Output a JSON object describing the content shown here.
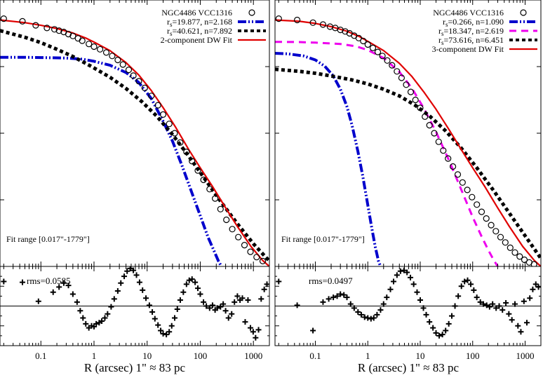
{
  "xaxis": {
    "label": "R (arcsec)  1\" ≈  83 pc",
    "log": true,
    "range": [
      0.017,
      2000
    ],
    "ticks": [
      0.1,
      1,
      10,
      100,
      1000
    ],
    "tick_labels": [
      "0.1",
      "1",
      "10",
      "100",
      "1000"
    ]
  },
  "chart_data": [
    {
      "type": "line",
      "panel": "left-profile",
      "xlog": true,
      "xlim": [
        0.017,
        2000
      ],
      "ylim": [
        0,
        1
      ],
      "fit_range": "Fit range [0.017\"-1779\"]",
      "series": [
        {
          "name": "NGC4486 VCC1316",
          "style": "points",
          "color": "#000000",
          "symbol": "open-circle",
          "x": [
            0.02,
            0.045,
            0.08,
            0.13,
            0.18,
            0.22,
            0.27,
            0.33,
            0.4,
            0.5,
            0.6,
            0.8,
            1,
            1.3,
            1.7,
            2.2,
            2.8,
            3.5,
            4.5,
            5.5,
            7,
            9,
            12,
            16,
            20,
            26,
            33,
            42,
            55,
            70,
            90,
            115,
            150,
            190,
            240,
            310,
            400,
            520,
            680,
            880,
            1150,
            1500
          ],
          "y": [
            0.93,
            0.92,
            0.905,
            0.895,
            0.89,
            0.885,
            0.88,
            0.872,
            0.865,
            0.856,
            0.847,
            0.835,
            0.825,
            0.815,
            0.803,
            0.79,
            0.775,
            0.758,
            0.738,
            0.716,
            0.695,
            0.67,
            0.64,
            0.605,
            0.57,
            0.535,
            0.5,
            0.465,
            0.43,
            0.395,
            0.36,
            0.325,
            0.29,
            0.255,
            0.215,
            0.175,
            0.14,
            0.11,
            0.08,
            0.055,
            0.035,
            0.02
          ]
        },
        {
          "name": "r_s=19.877, n=2.168",
          "style": "dash-dot-dot",
          "color": "#0000cc",
          "x": [
            0.017,
            0.05,
            0.1,
            0.3,
            0.6,
            1,
            2,
            4,
            7,
            12,
            20,
            30,
            45,
            70,
            100,
            140,
            180,
            220,
            250
          ],
          "y": [
            0.785,
            0.785,
            0.784,
            0.782,
            0.778,
            0.77,
            0.755,
            0.728,
            0.69,
            0.63,
            0.545,
            0.47,
            0.38,
            0.275,
            0.19,
            0.11,
            0.06,
            0.02,
            0.0
          ]
        },
        {
          "name": "r_s=40.621, n=7.892",
          "style": "dotted-thick",
          "color": "#000000",
          "x": [
            0.017,
            0.05,
            0.1,
            0.2,
            0.4,
            0.7,
            1,
            2,
            4,
            8,
            15,
            30,
            60,
            120,
            250,
            500,
            1000,
            2000
          ],
          "y": [
            0.885,
            0.86,
            0.84,
            0.815,
            0.788,
            0.762,
            0.745,
            0.71,
            0.668,
            0.618,
            0.565,
            0.495,
            0.415,
            0.33,
            0.24,
            0.16,
            0.085,
            0.02
          ]
        },
        {
          "name": "2-component DW Fit",
          "style": "solid",
          "color": "#e00000",
          "x": [
            0.017,
            0.05,
            0.1,
            0.2,
            0.4,
            0.7,
            1,
            2,
            4,
            7,
            12,
            20,
            35,
            60,
            100,
            170,
            300,
            500,
            900,
            1500,
            2000
          ],
          "y": [
            0.925,
            0.915,
            0.905,
            0.893,
            0.876,
            0.857,
            0.842,
            0.81,
            0.765,
            0.718,
            0.66,
            0.596,
            0.52,
            0.44,
            0.37,
            0.3,
            0.22,
            0.15,
            0.075,
            0.022,
            0.0
          ]
        }
      ]
    },
    {
      "type": "scatter",
      "panel": "left-residuals",
      "xlog": true,
      "xlim": [
        0.017,
        2000
      ],
      "ylim": [
        -1,
        1
      ],
      "rms": "rms=0.0585",
      "series": [
        {
          "name": "",
          "symbol": "plus",
          "x": [
            0.02,
            0.045,
            0.09,
            0.17,
            0.22,
            0.27,
            0.33,
            0.4,
            0.48,
            0.55,
            0.62,
            0.7,
            0.8,
            0.9,
            1,
            1.1,
            1.25,
            1.4,
            1.6,
            1.8,
            2.1,
            2.4,
            2.8,
            3.2,
            3.7,
            4.2,
            4.8,
            5.5,
            6.3,
            7.2,
            8.2,
            9.5,
            11,
            12.5,
            14,
            16,
            18,
            20,
            23,
            26,
            29,
            33,
            37,
            42,
            48,
            55,
            62,
            70,
            80,
            90,
            100,
            115,
            130,
            150,
            170,
            190,
            210,
            240,
            270,
            300,
            340,
            390,
            440,
            500,
            560,
            620,
            700,
            790,
            880,
            990,
            1100,
            1250,
            1400,
            1600,
            1800
          ],
          "y": [
            0.62,
            0.6,
            0.12,
            0.35,
            0.48,
            0.58,
            0.52,
            0.3,
            0.1,
            -0.12,
            -0.3,
            -0.45,
            -0.55,
            -0.5,
            -0.52,
            -0.45,
            -0.42,
            -0.38,
            -0.3,
            -0.2,
            -0.02,
            0.18,
            0.38,
            0.58,
            0.75,
            0.88,
            0.95,
            0.9,
            0.78,
            0.6,
            0.4,
            0.2,
            0.02,
            -0.15,
            -0.32,
            -0.48,
            -0.62,
            -0.7,
            -0.72,
            -0.65,
            -0.5,
            -0.3,
            -0.08,
            0.15,
            0.35,
            0.55,
            0.65,
            0.68,
            0.6,
            0.45,
            0.3,
            0.1,
            0.0,
            -0.05,
            0.02,
            -0.1,
            -0.05,
            -0.02,
            0.05,
            -0.12,
            -0.3,
            -0.2,
            0.1,
            0.25,
            0.15,
            0.2,
            -0.4,
            0.15,
            -0.55,
            -0.65,
            -0.8,
            -0.6,
            0.18,
            0.42,
            0.55
          ]
        }
      ]
    },
    {
      "type": "line",
      "panel": "right-profile",
      "xlog": true,
      "xlim": [
        0.017,
        2000
      ],
      "ylim": [
        0,
        1
      ],
      "fit_range": "Fit range [0.017\"-1779\"]",
      "series": [
        {
          "name": "NGC4486 VCC1316",
          "style": "points",
          "color": "#000000",
          "symbol": "open-circle",
          "x": [
            0.02,
            0.045,
            0.09,
            0.14,
            0.19,
            0.24,
            0.3,
            0.37,
            0.45,
            0.55,
            0.67,
            0.82,
            1,
            1.25,
            1.55,
            1.9,
            2.35,
            2.9,
            3.6,
            4.4,
            5.4,
            6.6,
            8.1,
            10,
            12.3,
            15,
            18.5,
            22.5,
            27.5,
            34,
            42,
            52,
            64,
            79,
            97,
            120,
            148,
            182,
            225,
            277,
            340,
            420,
            520,
            640,
            790,
            970,
            1200,
            1480
          ],
          "y": [
            0.93,
            0.925,
            0.915,
            0.908,
            0.9,
            0.895,
            0.888,
            0.882,
            0.875,
            0.866,
            0.857,
            0.846,
            0.833,
            0.82,
            0.805,
            0.79,
            0.773,
            0.755,
            0.732,
            0.708,
            0.682,
            0.655,
            0.625,
            0.595,
            0.562,
            0.53,
            0.5,
            0.468,
            0.435,
            0.405,
            0.375,
            0.345,
            0.315,
            0.287,
            0.26,
            0.232,
            0.205,
            0.18,
            0.155,
            0.132,
            0.11,
            0.09,
            0.07,
            0.052,
            0.037,
            0.025,
            0.015,
            0.008
          ]
        },
        {
          "name": "r_s=0.266, n=1.090",
          "style": "dash-dot-dot",
          "color": "#0000cc",
          "x": [
            0.017,
            0.03,
            0.06,
            0.1,
            0.15,
            0.22,
            0.3,
            0.4,
            0.5,
            0.65,
            0.8,
            1,
            1.2,
            1.4,
            1.6,
            1.75
          ],
          "y": [
            0.8,
            0.798,
            0.79,
            0.775,
            0.752,
            0.715,
            0.665,
            0.6,
            0.53,
            0.43,
            0.34,
            0.23,
            0.14,
            0.07,
            0.02,
            0.0
          ]
        },
        {
          "name": "r_s=18.347, n=2.619",
          "style": "dashed",
          "color": "#ee00ee",
          "x": [
            0.017,
            0.05,
            0.1,
            0.3,
            0.6,
            1,
            2,
            4,
            7,
            12,
            20,
            35,
            60,
            100,
            150,
            200,
            250,
            300
          ],
          "y": [
            0.843,
            0.842,
            0.84,
            0.835,
            0.826,
            0.812,
            0.782,
            0.73,
            0.668,
            0.59,
            0.505,
            0.4,
            0.29,
            0.185,
            0.11,
            0.06,
            0.025,
            0.0
          ]
        },
        {
          "name": "r_s=73.616, n=6.451",
          "style": "dotted-thick",
          "color": "#000000",
          "x": [
            0.017,
            0.05,
            0.1,
            0.2,
            0.5,
            1,
            2,
            4,
            8,
            15,
            30,
            60,
            120,
            250,
            500,
            1000,
            2000
          ],
          "y": [
            0.74,
            0.732,
            0.725,
            0.715,
            0.7,
            0.685,
            0.665,
            0.64,
            0.605,
            0.565,
            0.51,
            0.445,
            0.37,
            0.285,
            0.2,
            0.115,
            0.03
          ]
        },
        {
          "name": "3-component DW Fit",
          "style": "solid",
          "color": "#e00000",
          "x": [
            0.017,
            0.05,
            0.1,
            0.2,
            0.4,
            0.7,
            1,
            2,
            4,
            7,
            12,
            20,
            35,
            60,
            100,
            170,
            300,
            500,
            900,
            1500,
            2000
          ],
          "y": [
            0.925,
            0.92,
            0.912,
            0.9,
            0.883,
            0.862,
            0.845,
            0.81,
            0.762,
            0.712,
            0.652,
            0.59,
            0.515,
            0.44,
            0.37,
            0.3,
            0.22,
            0.15,
            0.075,
            0.022,
            0.0
          ]
        }
      ]
    },
    {
      "type": "scatter",
      "panel": "right-residuals",
      "xlog": true,
      "xlim": [
        0.017,
        2000
      ],
      "ylim": [
        -1,
        1
      ],
      "rms": "rms=0.0497",
      "series": [
        {
          "name": "",
          "symbol": "plus",
          "x": [
            0.02,
            0.045,
            0.09,
            0.14,
            0.18,
            0.22,
            0.26,
            0.3,
            0.35,
            0.4,
            0.47,
            0.55,
            0.65,
            0.75,
            0.87,
            1,
            1.15,
            1.3,
            1.5,
            1.75,
            2,
            2.3,
            2.7,
            3.1,
            3.6,
            4.2,
            4.9,
            5.6,
            6.5,
            7.5,
            8.7,
            10,
            11.5,
            13,
            15,
            17.5,
            20,
            23,
            26.5,
            30.5,
            35,
            40,
            46,
            53,
            61,
            70,
            80,
            92,
            105,
            120,
            140,
            160,
            185,
            210,
            240,
            280,
            320,
            370,
            430,
            490,
            560,
            640,
            730,
            830,
            950,
            1080,
            1230,
            1400,
            1600,
            1800
          ],
          "y": [
            0.62,
            0.02,
            -0.62,
            0.1,
            0.18,
            0.22,
            0.25,
            0.3,
            0.28,
            0.22,
            0.05,
            -0.05,
            -0.15,
            -0.22,
            -0.28,
            -0.3,
            -0.32,
            -0.3,
            -0.22,
            -0.1,
            0.05,
            0.22,
            0.42,
            0.62,
            0.78,
            0.88,
            0.9,
            0.85,
            0.72,
            0.55,
            0.35,
            0.15,
            -0.05,
            -0.22,
            -0.4,
            -0.55,
            -0.68,
            -0.75,
            -0.72,
            -0.62,
            -0.45,
            -0.25,
            0.0,
            0.25,
            0.5,
            0.62,
            0.65,
            0.55,
            0.4,
            0.22,
            0.1,
            0.05,
            0.02,
            -0.02,
            0.05,
            -0.05,
            0.0,
            -0.1,
            0.08,
            -0.2,
            -0.35,
            0.05,
            -0.5,
            -0.65,
            0.12,
            -0.42,
            0.2,
            0.42,
            0.55,
            0.48
          ]
        }
      ]
    }
  ]
}
